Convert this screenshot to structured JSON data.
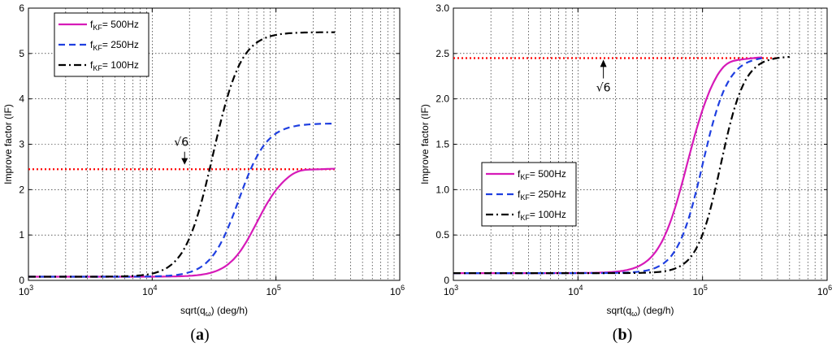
{
  "chart_data": [
    {
      "type": "line",
      "panel_label": "(a)",
      "xlabel": "sqrt(q",
      "xlabel_sub": "ω",
      "xlabel_tail": ") (deg/h)",
      "ylabel": "Improve factor (IF)",
      "xscale": "log",
      "xlim": [
        1000,
        1000000
      ],
      "ylim": [
        0,
        6
      ],
      "yticks": [
        0,
        1,
        2,
        3,
        4,
        5,
        6
      ],
      "ytick_labels": [
        "0",
        "1",
        "2",
        "3",
        "4",
        "5",
        "6"
      ],
      "xtick_base": "10",
      "xtick_exps": [
        "3",
        "4",
        "5",
        "6"
      ],
      "grid": true,
      "legend_position": "top-left",
      "reference_line": {
        "y": 2.449,
        "color": "#ff0000",
        "style": "dotted"
      },
      "annotation": {
        "text": "√6",
        "x": 18000,
        "y": 3.05,
        "arrow_to_y": 2.55,
        "arrow_dir": "down"
      },
      "series": [
        {
          "name": "f",
          "name_sub": "KF",
          "name_tail": "= 500Hz",
          "color": "#d61ab8",
          "style": "solid",
          "plateau": 2.47,
          "center": 70000,
          "width": 0.5,
          "x": [
            1000,
            3000,
            10000,
            20000,
            40000,
            60000,
            80000,
            100000,
            150000,
            200000,
            300000
          ],
          "y": [
            0.08,
            0.08,
            0.13,
            0.22,
            0.55,
            1.05,
            1.6,
            2.1,
            2.5,
            2.48,
            2.45
          ]
        },
        {
          "name": "f",
          "name_sub": "KF",
          "name_tail": "= 250Hz",
          "color": "#1f3fe0",
          "style": "dashed",
          "plateau": 3.46,
          "center": 50000,
          "width": 0.5,
          "x": [
            1000,
            3000,
            10000,
            20000,
            30000,
            40000,
            50000,
            60000,
            80000,
            100000,
            300000
          ],
          "y": [
            0.08,
            0.08,
            0.14,
            0.3,
            0.62,
            1.1,
            1.73,
            2.4,
            3.15,
            3.45,
            3.46
          ]
        },
        {
          "name": "f",
          "name_sub": "KF",
          "name_tail": "= 100Hz",
          "color": "#000000",
          "style": "dashdot",
          "plateau": 5.47,
          "center": 31000,
          "width": 0.5,
          "x": [
            1000,
            3000,
            10000,
            15000,
            20000,
            25000,
            30000,
            35000,
            40000,
            50000,
            300000
          ],
          "y": [
            0.08,
            0.08,
            0.2,
            0.45,
            0.9,
            1.6,
            2.6,
            3.6,
            4.4,
            5.3,
            5.47
          ]
        }
      ]
    },
    {
      "type": "line",
      "panel_label": "(b)",
      "xlabel": "sqrt(q",
      "xlabel_sub": "ω",
      "xlabel_tail": ") (deg/h)",
      "ylabel": "Improve factor (IF)",
      "xscale": "log",
      "xlim": [
        1000,
        1000000
      ],
      "ylim": [
        0,
        3
      ],
      "yticks": [
        0,
        0.5,
        1,
        1.5,
        2,
        2.5,
        3
      ],
      "ytick_labels": [
        "0",
        "0.5",
        "1.0",
        "1.5",
        "2.0",
        "2.5",
        "3.0"
      ],
      "xtick_base": "10",
      "xtick_exps": [
        "3",
        "4",
        "5",
        "6"
      ],
      "grid": true,
      "legend_position": "center-left",
      "reference_line": {
        "y": 2.449,
        "color": "#ff0000",
        "style": "dotted"
      },
      "annotation": {
        "text": "√6",
        "x": 16000,
        "y": 2.1,
        "arrow_to_y": 2.45,
        "arrow_dir": "up"
      },
      "series": [
        {
          "name": "f",
          "name_sub": "KF",
          "name_tail": "= 500Hz",
          "color": "#d61ab8",
          "style": "solid",
          "plateau": 2.47,
          "center": 75000,
          "width": 0.5,
          "x": [
            1000,
            3000,
            10000,
            30000,
            50000,
            70000,
            100000,
            150000,
            200000,
            300000
          ],
          "y": [
            0.08,
            0.08,
            0.12,
            0.3,
            0.75,
            1.25,
            2.1,
            2.51,
            2.49,
            2.47
          ]
        },
        {
          "name": "f",
          "name_sub": "KF",
          "name_tail": "= 250Hz",
          "color": "#1f3fe0",
          "style": "dashed",
          "plateau": 2.47,
          "center": 100000,
          "width": 0.45,
          "x": [
            1000,
            3000,
            10000,
            30000,
            60000,
            80000,
            100000,
            150000,
            200000,
            300000
          ],
          "y": [
            0.08,
            0.08,
            0.1,
            0.2,
            0.55,
            0.95,
            1.45,
            2.3,
            2.47,
            2.47
          ]
        },
        {
          "name": "f",
          "name_sub": "KF",
          "name_tail": "= 100Hz",
          "color": "#000000",
          "style": "dashdot",
          "plateau": 2.47,
          "center": 140000,
          "width": 0.42,
          "x": [
            1000,
            3000,
            10000,
            40000,
            80000,
            100000,
            140000,
            200000,
            300000,
            500000
          ],
          "y": [
            0.08,
            0.08,
            0.09,
            0.15,
            0.45,
            0.75,
            1.35,
            2.2,
            2.45,
            2.47
          ]
        }
      ]
    }
  ]
}
